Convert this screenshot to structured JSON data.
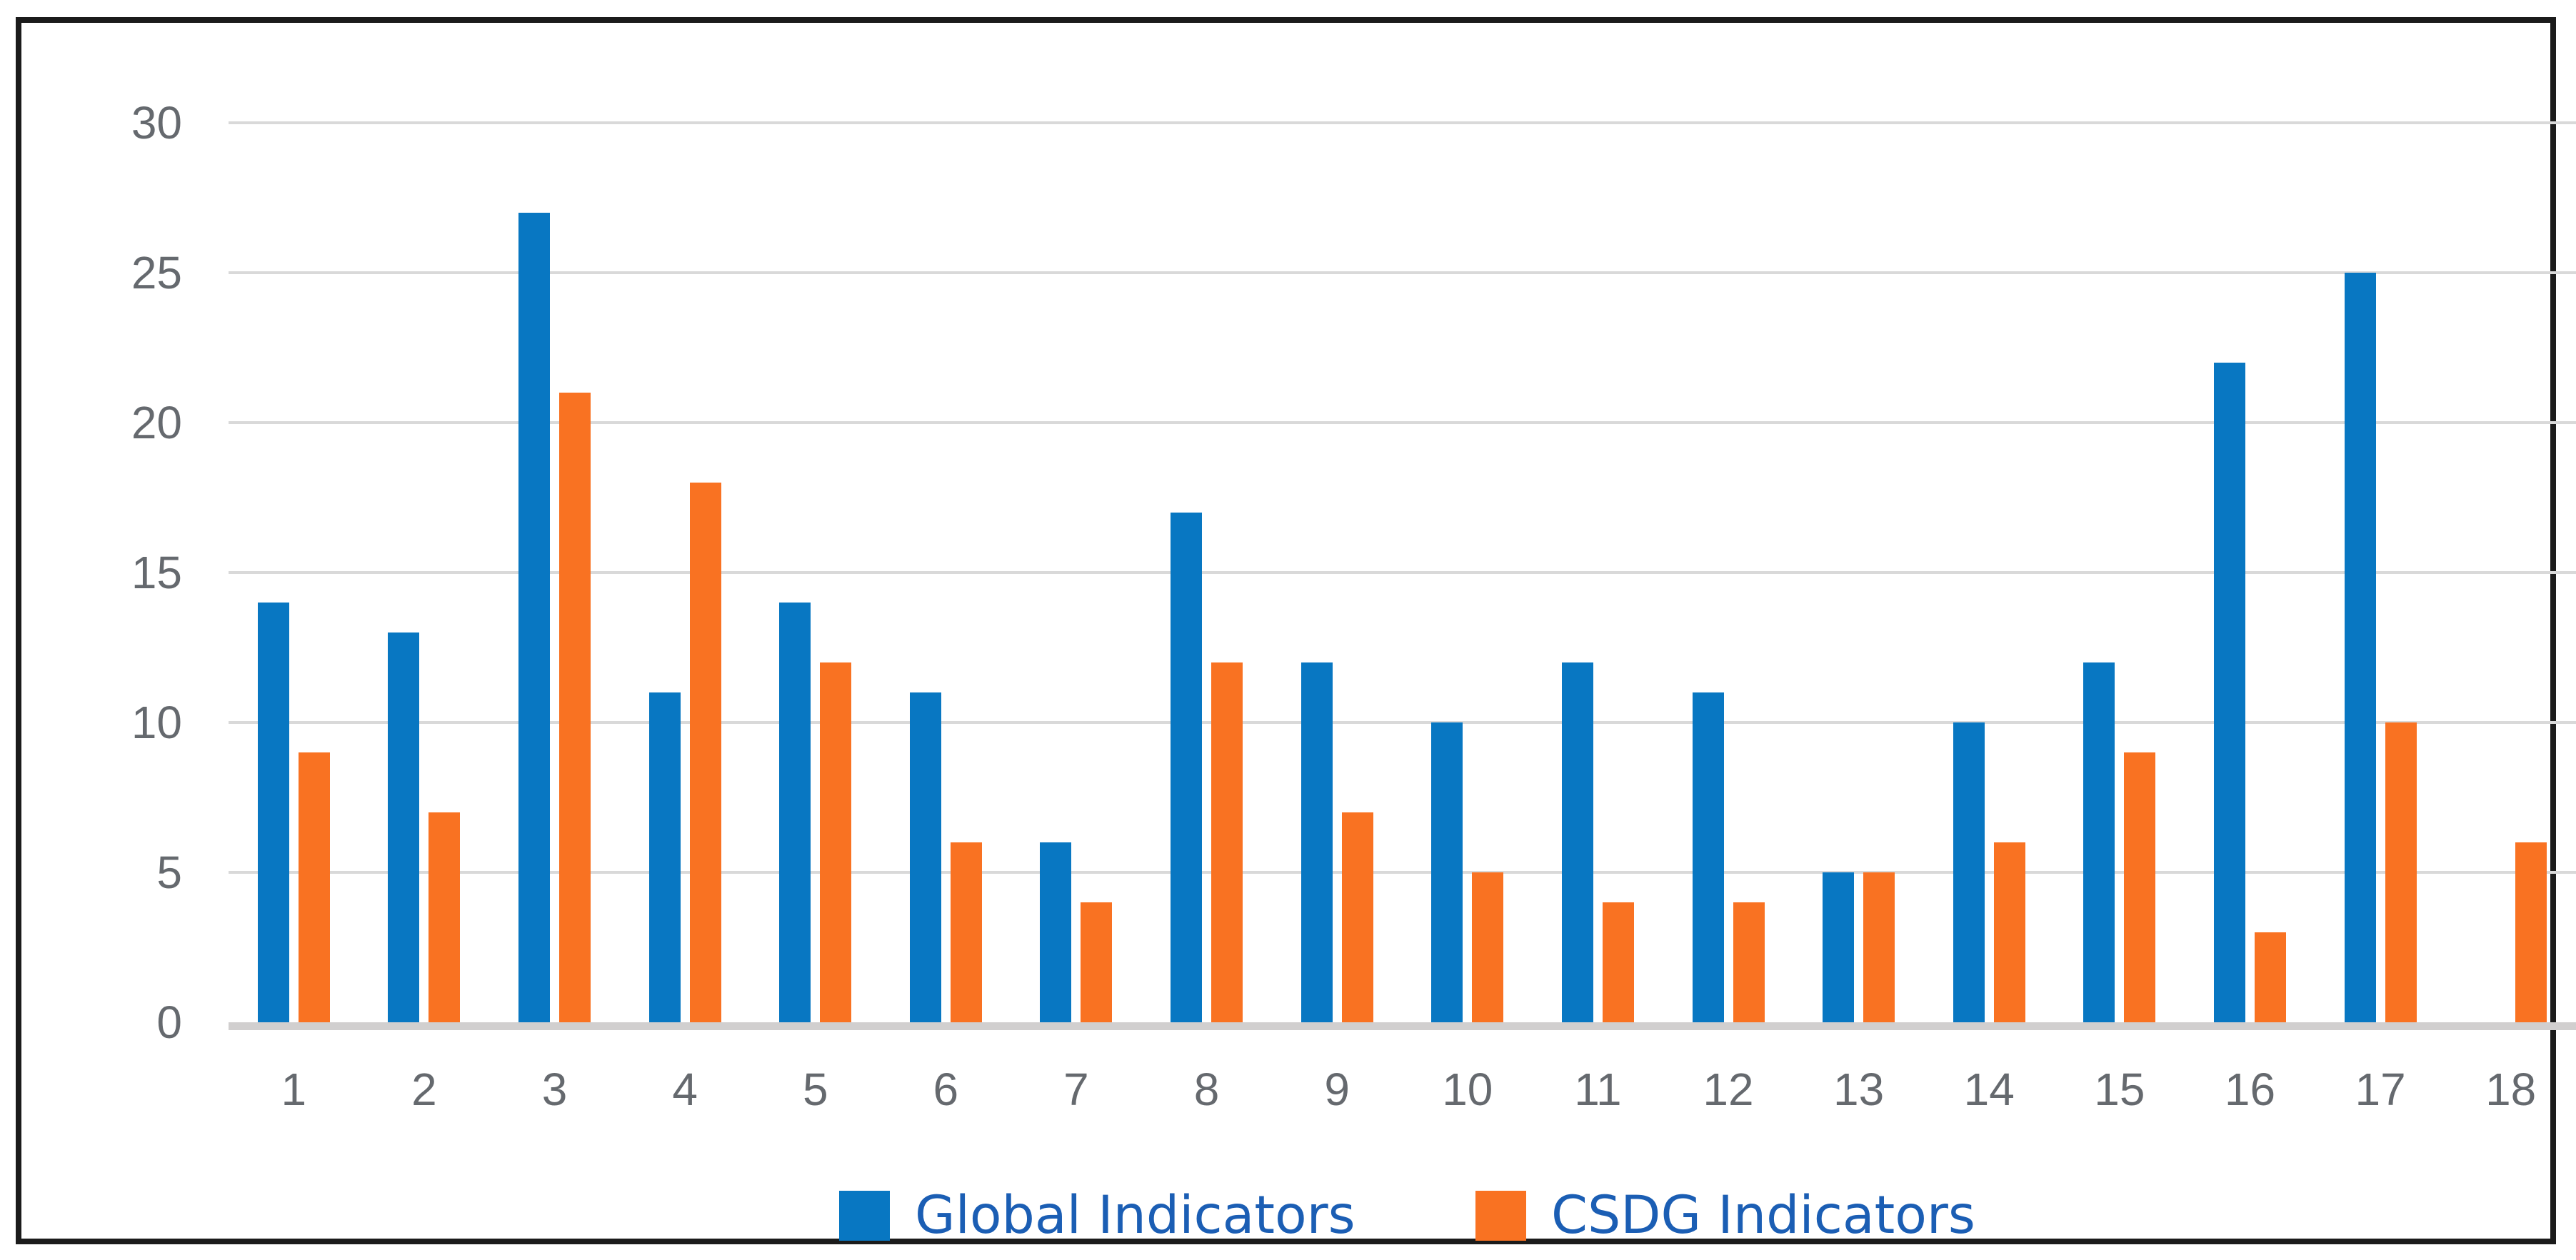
{
  "chart_data": {
    "type": "bar",
    "title": "",
    "categories": [
      "1",
      "2",
      "3",
      "4",
      "5",
      "6",
      "7",
      "8",
      "9",
      "10",
      "11",
      "12",
      "13",
      "14",
      "15",
      "16",
      "17",
      "18"
    ],
    "series": [
      {
        "name": "Global Indicators",
        "color": "#0877C2",
        "values": [
          14,
          13,
          27,
          11,
          14,
          11,
          6,
          17,
          12,
          10,
          12,
          11,
          5,
          10,
          12,
          22,
          25,
          0
        ]
      },
      {
        "name": "CSDG Indicators",
        "color": "#F97222",
        "values": [
          9,
          7,
          21,
          18,
          12,
          6,
          4,
          12,
          7,
          5,
          4,
          4,
          5,
          6,
          9,
          3,
          10,
          6
        ]
      }
    ],
    "ylim": [
      0,
      30
    ],
    "y_ticks": [
      0,
      5,
      10,
      15,
      20,
      25,
      30
    ],
    "grid": "horizontal",
    "legend_position": "bottom"
  },
  "styles": {
    "series_blue": "#0877C2",
    "series_orange": "#F97222",
    "gridline_color": "#D9D9D9",
    "axis_line_color": "#D1CFCF",
    "tick_label_color": "#65696E",
    "legend_text_color": "#1B5EB4",
    "frame_border_color": "#1B1B1B"
  }
}
